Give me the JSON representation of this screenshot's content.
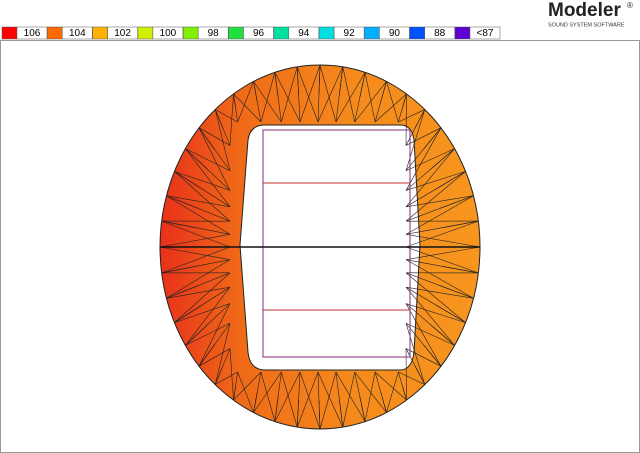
{
  "logo": {
    "name": "Modeler",
    "mark": "®",
    "tagline": "SOUND SYSTEM SOFTWARE"
  },
  "legend": [
    {
      "label": "106",
      "color": "#ff0000"
    },
    {
      "label": "104",
      "color": "#ff6a00"
    },
    {
      "label": "102",
      "color": "#ffb000"
    },
    {
      "label": "100",
      "color": "#d0f000"
    },
    {
      "label": "98",
      "color": "#80f000"
    },
    {
      "label": "96",
      "color": "#20e040"
    },
    {
      "label": "94",
      "color": "#00e0a0"
    },
    {
      "label": "92",
      "color": "#00e0e0"
    },
    {
      "label": "90",
      "color": "#00b0ff"
    },
    {
      "label": "88",
      "color": "#0050ff"
    },
    {
      "label": "<87",
      "color": "#6000d0"
    }
  ]
}
